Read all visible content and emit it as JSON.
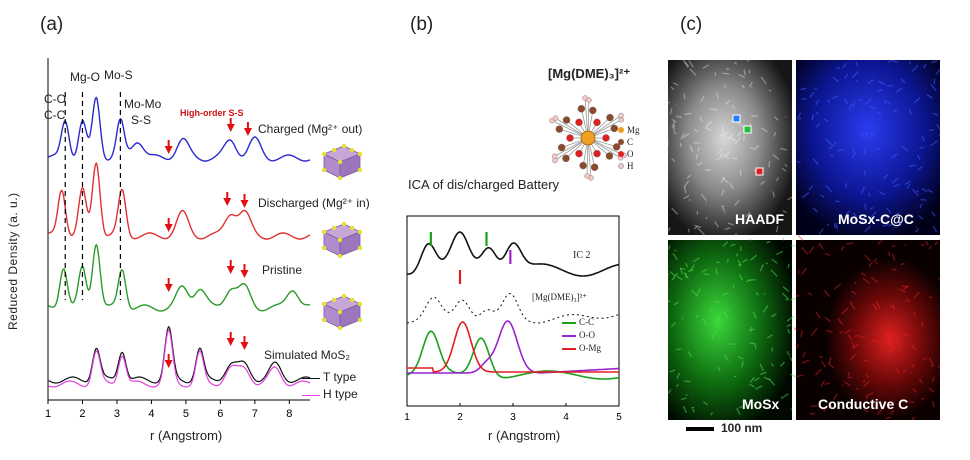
{
  "panels": {
    "a": {
      "letter": "(a)",
      "ylabel": "Reduced Density (a. u.)",
      "xlabel": "r (Angstrom)",
      "xticks": [
        "1",
        "2",
        "3",
        "4",
        "5",
        "6",
        "7",
        "8"
      ],
      "peak_labels": {
        "co": "C-O",
        "cc": "C-C",
        "mgo": "Mg-O",
        "mos": "Mo-S",
        "momo": "Mo-Mo",
        "ss": "S-S",
        "highorder": "High-order S-S"
      },
      "traces": {
        "charged": "Charged (Mg²⁺ out)",
        "discharged": "Discharged (Mg²⁺ in)",
        "pristine": "Pristine",
        "simulated": "Simulated MoS₂"
      },
      "legend": {
        "t_type": "T type",
        "h_type": "H type"
      },
      "colors": {
        "charged": "#2a2ad0",
        "discharged": "#e03030",
        "pristine": "#2a9a2a",
        "t_type": "#111111",
        "h_type": "#e040e0",
        "arrow": "#e01010"
      }
    },
    "b": {
      "letter": "(b)",
      "complex_label": "[Mg(DME)₃]²⁺",
      "molecule_legend": [
        "Mg",
        "C",
        "O",
        "H"
      ],
      "ica_title": "ICA of dis/charged Battery",
      "ic2_label": "IC 2",
      "mgdme_label": "[Mg(DME)₃]²⁺",
      "legend": [
        "C-C",
        "O-O",
        "O-Mg"
      ],
      "xlabel": "r (Angstrom)",
      "xticks": [
        "1",
        "2",
        "3",
        "4",
        "5"
      ],
      "colors": {
        "cc": "#1aa01a",
        "oo": "#9a22d0",
        "omg": "#e02020"
      }
    },
    "c": {
      "letter": "(c)",
      "tiles": [
        "HAADF",
        "MoSx-C@C",
        "MoSx",
        "Conductive C"
      ],
      "scale_bar": "100 nm"
    }
  },
  "chart_data": [
    {
      "type": "line",
      "title": "",
      "xlabel": "r (Angstrom)",
      "ylabel": "Reduced Density (a. u.)",
      "xlim": [
        1,
        8.6
      ],
      "series": [
        {
          "name": "Charged (Mg²⁺ out)",
          "peaks": [
            1.5,
            2.0,
            2.4,
            3.1,
            3.6,
            4.9,
            6.3,
            7.0
          ]
        },
        {
          "name": "Discharged (Mg²⁺ in)",
          "peaks": [
            1.4,
            2.0,
            2.4,
            3.15,
            4.9,
            6.3,
            6.7
          ]
        },
        {
          "name": "Pristine",
          "peaks": [
            1.45,
            2.0,
            2.4,
            3.15,
            4.9,
            5.4,
            6.3,
            6.7,
            8.1
          ]
        },
        {
          "name": "T type",
          "peaks": [
            2.4,
            3.15,
            4.5,
            5.4,
            6.3,
            6.7,
            7.6
          ]
        },
        {
          "name": "H type",
          "peaks": [
            2.4,
            3.15,
            4.5,
            5.4,
            6.3,
            6.7,
            7.6
          ]
        }
      ]
    },
    {
      "type": "line",
      "title": "",
      "xlabel": "r (Angstrom)",
      "xlim": [
        1,
        5
      ],
      "series": [
        {
          "name": "IC 2",
          "peaks": [
            1.4,
            2.0,
            2.5,
            3.0
          ]
        },
        {
          "name": "[Mg(DME)₃]²⁺",
          "peaks": [
            1.5,
            2.05,
            2.95
          ]
        },
        {
          "name": "C-C",
          "peaks": [
            1.45,
            2.4
          ]
        },
        {
          "name": "O-O",
          "peaks": [
            2.85
          ]
        },
        {
          "name": "O-Mg",
          "peaks": [
            2.05
          ]
        }
      ]
    }
  ]
}
